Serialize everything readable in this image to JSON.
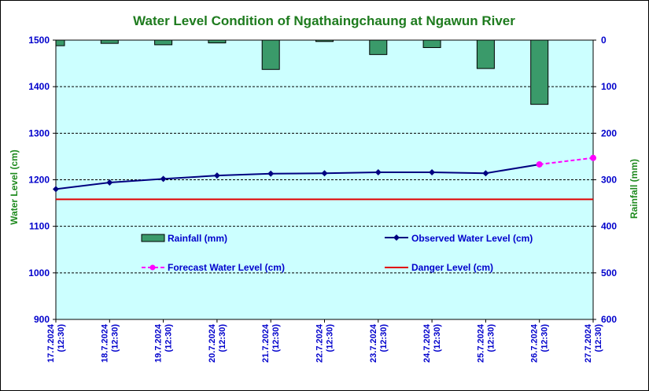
{
  "chart_data": {
    "type": "line",
    "title": "Water Level Condition of  Ngathaingchaung at Ngawun River",
    "ylabel_left": "Water Level (cm)",
    "ylabel_right": "Rainfall (mm)",
    "ylim_left": [
      900,
      1500
    ],
    "yticks_left": [
      "900",
      "1000",
      "1100",
      "1200",
      "1300",
      "1400",
      "1500"
    ],
    "ylim_right": [
      0,
      600
    ],
    "yticks_right": [
      "0",
      "100",
      "200",
      "300",
      "400",
      "500",
      "600"
    ],
    "right_axis_inverted": true,
    "grid": "horizontal dashed",
    "categories": [
      "17.7.2024 (12:30)",
      "18.7.2024 (12:30)",
      "19.7.2024 (12:30)",
      "20.7.2024 (12:30)",
      "21.7.2024 (12:30)",
      "22.7.2024 (12:30)",
      "23.7.2024 (12:30)",
      "24.7.2024 (12:30)",
      "25.7.2024 (12:30)",
      "26.7.2024 (12:30)",
      "27.7.2024 (12:30)"
    ],
    "series": [
      {
        "name": "Rainfall (mm)",
        "kind": "bar",
        "axis": "right",
        "color": "#3a9a6a",
        "values": [
          12,
          7,
          10,
          6,
          63,
          3,
          31,
          16,
          61,
          138,
          null
        ]
      },
      {
        "name": "Observed Water Level (cm)",
        "kind": "line",
        "axis": "left",
        "color": "#000080",
        "values": [
          1180,
          1194,
          1202,
          1209,
          1213,
          1214,
          1216,
          1216,
          1214,
          1233,
          null
        ]
      },
      {
        "name": "Forecast Water Level (cm)",
        "kind": "line-dashed",
        "axis": "left",
        "color": "#ff00ff",
        "values": [
          null,
          null,
          null,
          null,
          null,
          null,
          null,
          null,
          null,
          1233,
          1247
        ]
      },
      {
        "name": "Danger Level (cm)",
        "kind": "hline",
        "axis": "left",
        "color": "#e00000",
        "value": 1158
      }
    ],
    "colors": {
      "plot_background": "#ccffff",
      "tick_text": "#0000cc",
      "title_text": "#1e7b1e"
    }
  }
}
